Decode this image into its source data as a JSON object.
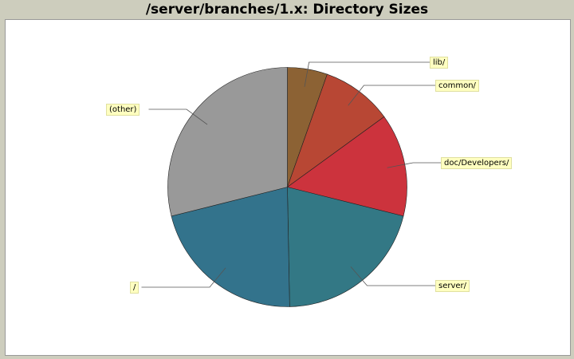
{
  "chart_data": {
    "type": "pie",
    "title": "/server/branches/1.x: Directory Sizes",
    "start": "top",
    "direction": "clockwise",
    "slices": [
      {
        "label": "lib/",
        "percent": 5.4,
        "color": "#8c6234"
      },
      {
        "label": "common/",
        "percent": 9.6,
        "color": "#b84734"
      },
      {
        "label": "doc/Developers/",
        "percent": 13.9,
        "color": "#cc333d"
      },
      {
        "label": "server/",
        "percent": 20.8,
        "color": "#337885"
      },
      {
        "label": "/",
        "percent": 21.4,
        "color": "#33738c"
      },
      {
        "label": "(other)",
        "percent": 28.9,
        "color": "#999999"
      }
    ],
    "legend": "none"
  }
}
